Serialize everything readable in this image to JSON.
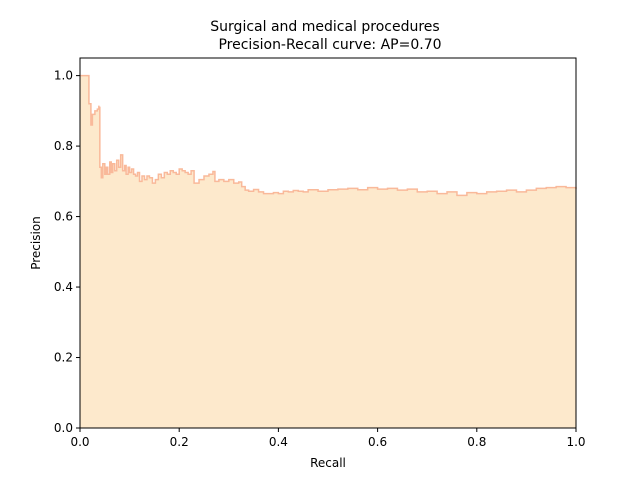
{
  "chart_data": {
    "type": "area",
    "title": "Surgical and medical procedures\n Precision-Recall curve: AP=0.70",
    "title_lines": [
      "Surgical and medical procedures",
      "Precision-Recall curve: AP=0.70"
    ],
    "xlabel": "Recall",
    "ylabel": "Precision",
    "xlim": [
      0.0,
      1.0
    ],
    "ylim": [
      0.0,
      1.05
    ],
    "xticks": [
      0.0,
      0.2,
      0.4,
      0.6,
      0.8,
      1.0
    ],
    "xtick_labels": [
      "0.0",
      "0.2",
      "0.4",
      "0.6",
      "0.8",
      "1.0"
    ],
    "yticks": [
      0.0,
      0.2,
      0.4,
      0.6,
      0.8,
      1.0
    ],
    "ytick_labels": [
      "0.0",
      "0.2",
      "0.4",
      "0.6",
      "0.8",
      "1.0"
    ],
    "grid": false,
    "colors": {
      "fill": "#fde9cc",
      "line": "#f9b99a"
    },
    "series": [
      {
        "x": [
          0.0,
          0.018,
          0.018,
          0.022,
          0.025,
          0.03,
          0.035,
          0.038,
          0.038,
          0.04,
          0.043,
          0.046,
          0.05,
          0.053,
          0.056,
          0.06,
          0.063,
          0.066,
          0.07,
          0.074,
          0.078,
          0.082,
          0.086,
          0.09,
          0.093,
          0.097,
          0.1,
          0.104,
          0.108,
          0.112,
          0.116,
          0.12,
          0.125,
          0.13,
          0.135,
          0.14,
          0.146,
          0.152,
          0.158,
          0.164,
          0.17,
          0.176,
          0.182,
          0.188,
          0.194,
          0.2,
          0.206,
          0.212,
          0.218,
          0.224,
          0.23,
          0.24,
          0.25,
          0.26,
          0.268,
          0.272,
          0.28,
          0.29,
          0.3,
          0.31,
          0.32,
          0.326,
          0.333,
          0.34,
          0.35,
          0.36,
          0.37,
          0.38,
          0.39,
          0.4,
          0.41,
          0.42,
          0.43,
          0.44,
          0.45,
          0.46,
          0.48,
          0.5,
          0.52,
          0.54,
          0.56,
          0.58,
          0.6,
          0.62,
          0.64,
          0.66,
          0.68,
          0.7,
          0.72,
          0.74,
          0.76,
          0.78,
          0.8,
          0.82,
          0.84,
          0.86,
          0.88,
          0.9,
          0.92,
          0.94,
          0.96,
          0.98,
          1.0
        ],
        "y": [
          1.0,
          1.0,
          0.92,
          0.86,
          0.89,
          0.9,
          0.905,
          0.915,
          0.91,
          0.74,
          0.71,
          0.75,
          0.72,
          0.74,
          0.72,
          0.755,
          0.725,
          0.75,
          0.73,
          0.76,
          0.74,
          0.775,
          0.73,
          0.745,
          0.72,
          0.74,
          0.725,
          0.735,
          0.72,
          0.715,
          0.725,
          0.7,
          0.715,
          0.705,
          0.715,
          0.71,
          0.695,
          0.705,
          0.72,
          0.71,
          0.725,
          0.72,
          0.73,
          0.725,
          0.72,
          0.735,
          0.73,
          0.725,
          0.72,
          0.73,
          0.695,
          0.705,
          0.715,
          0.72,
          0.728,
          0.7,
          0.705,
          0.7,
          0.705,
          0.695,
          0.698,
          0.685,
          0.675,
          0.672,
          0.677,
          0.67,
          0.665,
          0.665,
          0.668,
          0.665,
          0.672,
          0.67,
          0.674,
          0.672,
          0.67,
          0.676,
          0.672,
          0.676,
          0.678,
          0.68,
          0.676,
          0.682,
          0.678,
          0.68,
          0.675,
          0.678,
          0.67,
          0.672,
          0.665,
          0.67,
          0.66,
          0.668,
          0.665,
          0.67,
          0.672,
          0.675,
          0.67,
          0.675,
          0.68,
          0.682,
          0.685,
          0.682,
          0.678
        ]
      }
    ]
  }
}
